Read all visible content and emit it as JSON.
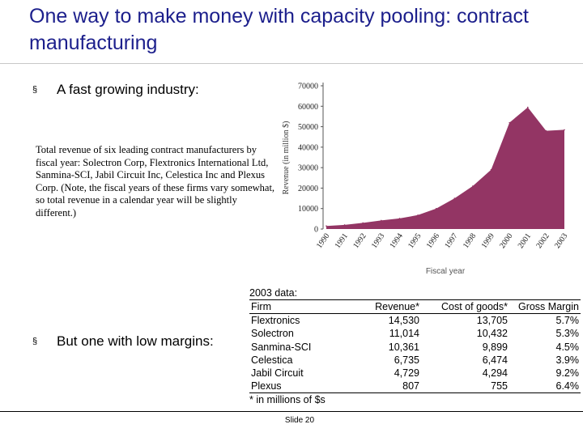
{
  "title": "One way to make money with capacity pooling: contract manufacturing",
  "bullets": {
    "first": "A fast growing industry:",
    "second": "But one with low margins:",
    "marker": "§"
  },
  "caption": "Total revenue of six leading contract manufacturers by fiscal year: Solectron Corp, Flextronics International Ltd, Sanmina-SCI, Jabil Circuit Inc, Celestica Inc and Plexus Corp. (Note, the fiscal years of these firms vary somewhat, so total revenue in a calendar year will be slightly different.)",
  "chart_data": {
    "type": "area",
    "title": "",
    "xlabel": "Fiscal year",
    "ylabel": "Revenue (in million $)",
    "x": [
      "1990",
      "1991",
      "1992",
      "1993",
      "1994",
      "1995",
      "1996",
      "1997",
      "1998",
      "1999",
      "2000",
      "2001",
      "2002",
      "2003"
    ],
    "values": [
      1500,
      2000,
      3000,
      4200,
      5200,
      6800,
      10000,
      15000,
      21000,
      29000,
      52000,
      59500,
      48000,
      48500
    ],
    "yticks": [
      "0",
      "10000",
      "20000",
      "30000",
      "40000",
      "50000",
      "60000",
      "70000"
    ],
    "ylim": [
      0,
      70000
    ],
    "fill_color": "#933564",
    "grid": false
  },
  "table": {
    "title": "2003 data:",
    "columns": [
      "Firm",
      "Revenue*",
      "Cost of goods*",
      "Gross Margin"
    ],
    "rows": [
      [
        "Flextronics",
        "14,530",
        "13,705",
        "5.7%"
      ],
      [
        "Solectron",
        "11,014",
        "10,432",
        "5.3%"
      ],
      [
        "Sanmina-SCI",
        "10,361",
        "9,899",
        "4.5%"
      ],
      [
        "Celestica",
        "6,735",
        "6,474",
        "3.9%"
      ],
      [
        "Jabil Circuit",
        "4,729",
        "4,294",
        "9.2%"
      ],
      [
        "Plexus",
        "807",
        "755",
        "6.4%"
      ]
    ],
    "note": "* in millions of $s"
  },
  "footer": {
    "slide_label": "Slide 20"
  }
}
